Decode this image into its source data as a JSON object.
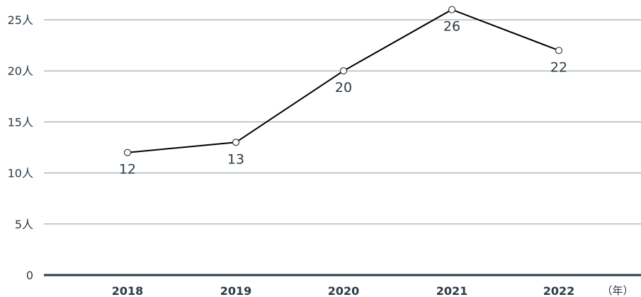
{
  "chart_data": {
    "type": "line",
    "x": [
      "2018",
      "2019",
      "2020",
      "2021",
      "2022"
    ],
    "series": [
      {
        "values": [
          12,
          13,
          20,
          26,
          22
        ]
      }
    ],
    "data_labels": [
      "12",
      "13",
      "20",
      "26",
      "22"
    ],
    "y_ticks": [
      {
        "value": 0,
        "label": "0"
      },
      {
        "value": 5,
        "label": "5人"
      },
      {
        "value": 10,
        "label": "10人"
      },
      {
        "value": 15,
        "label": "15人"
      },
      {
        "value": 20,
        "label": "20人"
      },
      {
        "value": 25,
        "label": "25人"
      }
    ],
    "x_unit": "（年）",
    "ylim": [
      0,
      25
    ],
    "grid": true,
    "colors": {
      "line": "#000000",
      "axis_text": "#2b3b45",
      "grid": "#8a9aa2",
      "baseline": "#2b3b45"
    }
  }
}
